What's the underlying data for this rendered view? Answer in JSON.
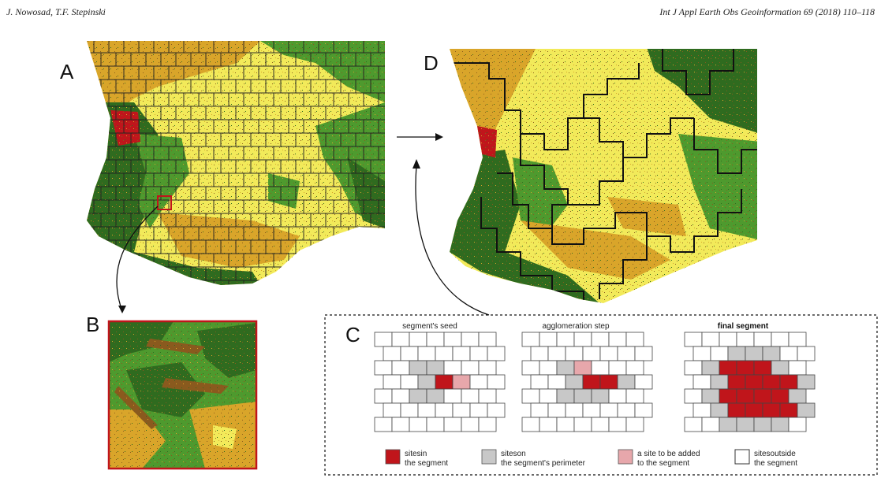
{
  "header": {
    "authors": "J. Nowosad, T.F. Stepinski",
    "journal": "Int J Appl  Earth Obs Geoinformation 69 (2018) 110–118"
  },
  "panels": {
    "a": "A",
    "b": "B",
    "c": "C",
    "d": "D"
  },
  "panel_c": {
    "titles": [
      "segment's seed",
      "agglomeration step",
      "final segment"
    ],
    "legend": [
      {
        "line1": "sitesin",
        "line2": "the segment",
        "color": "#c0151b"
      },
      {
        "line1": "siteson",
        "line2": "the segment's perimeter",
        "color": "#c8c8c8"
      },
      {
        "line1": "a site to be added",
        "line2": "to the segment",
        "color": "#e7a7ab"
      },
      {
        "line1": "sitesoutside",
        "line2": "the segment",
        "color": "#ffffff"
      }
    ]
  },
  "colors": {
    "dark_green": "#2f6b1f",
    "mid_green": "#4e9a2e",
    "yellow": "#f2ea5a",
    "ochre": "#d9a52a",
    "brown": "#8a5a1e",
    "red": "#c0151b",
    "pink": "#e7a7ab",
    "grey": "#c8c8c8"
  }
}
